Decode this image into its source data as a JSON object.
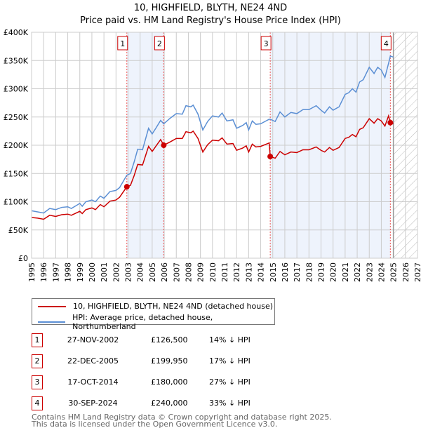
{
  "title": "10, HIGHFIELD, BLYTH, NE24 4ND",
  "subtitle": "Price paid vs. HM Land Registry's House Price Index (HPI)",
  "chart_data": {
    "type": "line",
    "ylim": [
      0,
      400000
    ],
    "xlim": [
      1995,
      2027
    ],
    "yticks": [
      {
        "v": 0,
        "label": "£0"
      },
      {
        "v": 50000,
        "label": "£50K"
      },
      {
        "v": 100000,
        "label": "£100K"
      },
      {
        "v": 150000,
        "label": "£150K"
      },
      {
        "v": 200000,
        "label": "£200K"
      },
      {
        "v": 250000,
        "label": "£250K"
      },
      {
        "v": 300000,
        "label": "£300K"
      },
      {
        "v": 350000,
        "label": "£350K"
      },
      {
        "v": 400000,
        "label": "£400K"
      }
    ],
    "xticks": [
      "1995",
      "1996",
      "1997",
      "1998",
      "1999",
      "2000",
      "2001",
      "2002",
      "2003",
      "2004",
      "2005",
      "2006",
      "2007",
      "2008",
      "2009",
      "2010",
      "2011",
      "2012",
      "2013",
      "2014",
      "2015",
      "2016",
      "2017",
      "2018",
      "2019",
      "2020",
      "2021",
      "2022",
      "2023",
      "2024",
      "2025",
      "2026",
      "2027"
    ],
    "x": [
      1995,
      1995.5,
      1996,
      1996.5,
      1997,
      1997.5,
      1998,
      1998.3,
      1999,
      1999.2,
      1999.5,
      2000,
      2000.3,
      2000.7,
      2001,
      2001.5,
      2002,
      2002.3,
      2002.9,
      2003.2,
      2003.5,
      2003.8,
      2004.2,
      2004.7,
      2005,
      2005.3,
      2005.7,
      2005.96,
      2006.5,
      2007,
      2007.5,
      2007.8,
      2008.2,
      2008.4,
      2008.8,
      2009.2,
      2009.6,
      2010,
      2010.5,
      2010.8,
      2011.2,
      2011.7,
      2012,
      2012.5,
      2012.8,
      2013,
      2013.3,
      2013.6,
      2014,
      2014.7,
      2014.79,
      2015.2,
      2015.6,
      2016,
      2016.5,
      2017,
      2017.5,
      2018,
      2018.6,
      2019,
      2019.3,
      2019.7,
      2020,
      2020.5,
      2021,
      2021.3,
      2021.6,
      2021.9,
      2022.2,
      2022.5,
      2023,
      2023.4,
      2023.7,
      2024,
      2024.3,
      2024.6,
      2024.75,
      2025
    ],
    "series": [
      {
        "name": "10, HIGHFIELD, BLYTH, NE24 4ND (detached house)",
        "color": "#cc0000",
        "values": [
          72000,
          71000,
          69000,
          76000,
          74000,
          77000,
          78000,
          76000,
          83000,
          79000,
          86000,
          89000,
          86000,
          95000,
          91000,
          101000,
          103000,
          108000,
          126500,
          129000,
          146000,
          166000,
          165000,
          198000,
          189000,
          198000,
          210000,
          199950,
          206000,
          212000,
          212000,
          224000,
          222000,
          225000,
          212000,
          188000,
          201000,
          209000,
          208000,
          213000,
          202000,
          203000,
          191000,
          195000,
          199000,
          188000,
          202000,
          197000,
          198000,
          204000,
          180000,
          177000,
          189000,
          183000,
          188000,
          187000,
          192000,
          192000,
          197000,
          191000,
          188000,
          196000,
          191000,
          196000,
          212000,
          214000,
          219000,
          215000,
          228000,
          231000,
          247000,
          239000,
          247000,
          243000,
          234000,
          252000,
          240000,
          238000
        ]
      },
      {
        "name": "HPI: Average price, detached house, Northumberland",
        "color": "#5b8fd4",
        "values": [
          84000,
          82000,
          80000,
          88000,
          86000,
          90000,
          91000,
          88000,
          97000,
          92000,
          100000,
          103000,
          100000,
          110000,
          106000,
          118000,
          120000,
          125000,
          147000,
          150000,
          170000,
          193000,
          192000,
          230000,
          220000,
          230000,
          244000,
          238000,
          248000,
          256000,
          255000,
          270000,
          268000,
          271000,
          255000,
          227000,
          242000,
          252000,
          250000,
          257000,
          243000,
          245000,
          230000,
          235000,
          240000,
          227000,
          243000,
          237000,
          238000,
          246000,
          246000,
          242000,
          259000,
          250000,
          258000,
          256000,
          263000,
          263000,
          270000,
          262000,
          257000,
          268000,
          262000,
          268000,
          290000,
          293000,
          300000,
          294000,
          312000,
          316000,
          338000,
          327000,
          338000,
          333000,
          320000,
          345000,
          358000,
          356000
        ]
      }
    ],
    "sales": [
      {
        "n": "1",
        "x": 2002.9,
        "price": 126500,
        "date": "27-NOV-2002",
        "price_label": "£126,500",
        "hpi": "14% ↓ HPI"
      },
      {
        "n": "2",
        "x": 2005.96,
        "price": 199950,
        "date": "22-DEC-2005",
        "price_label": "£199,950",
        "hpi": "17% ↓ HPI"
      },
      {
        "n": "3",
        "x": 2014.79,
        "price": 180000,
        "date": "17-OCT-2014",
        "price_label": "£180,000",
        "hpi": "27% ↓ HPI"
      },
      {
        "n": "4",
        "x": 2024.75,
        "price": 240000,
        "date": "30-SEP-2024",
        "price_label": "£240,000",
        "hpi": "33% ↓ HPI"
      }
    ],
    "shaded": [
      [
        2002.9,
        2005.96
      ],
      [
        2014.79,
        2024.75
      ]
    ],
    "forecast_start": 2025
  },
  "footer": [
    "Contains HM Land Registry data © Crown copyright and database right 2025.",
    "This data is licensed under the Open Government Licence v3.0."
  ]
}
